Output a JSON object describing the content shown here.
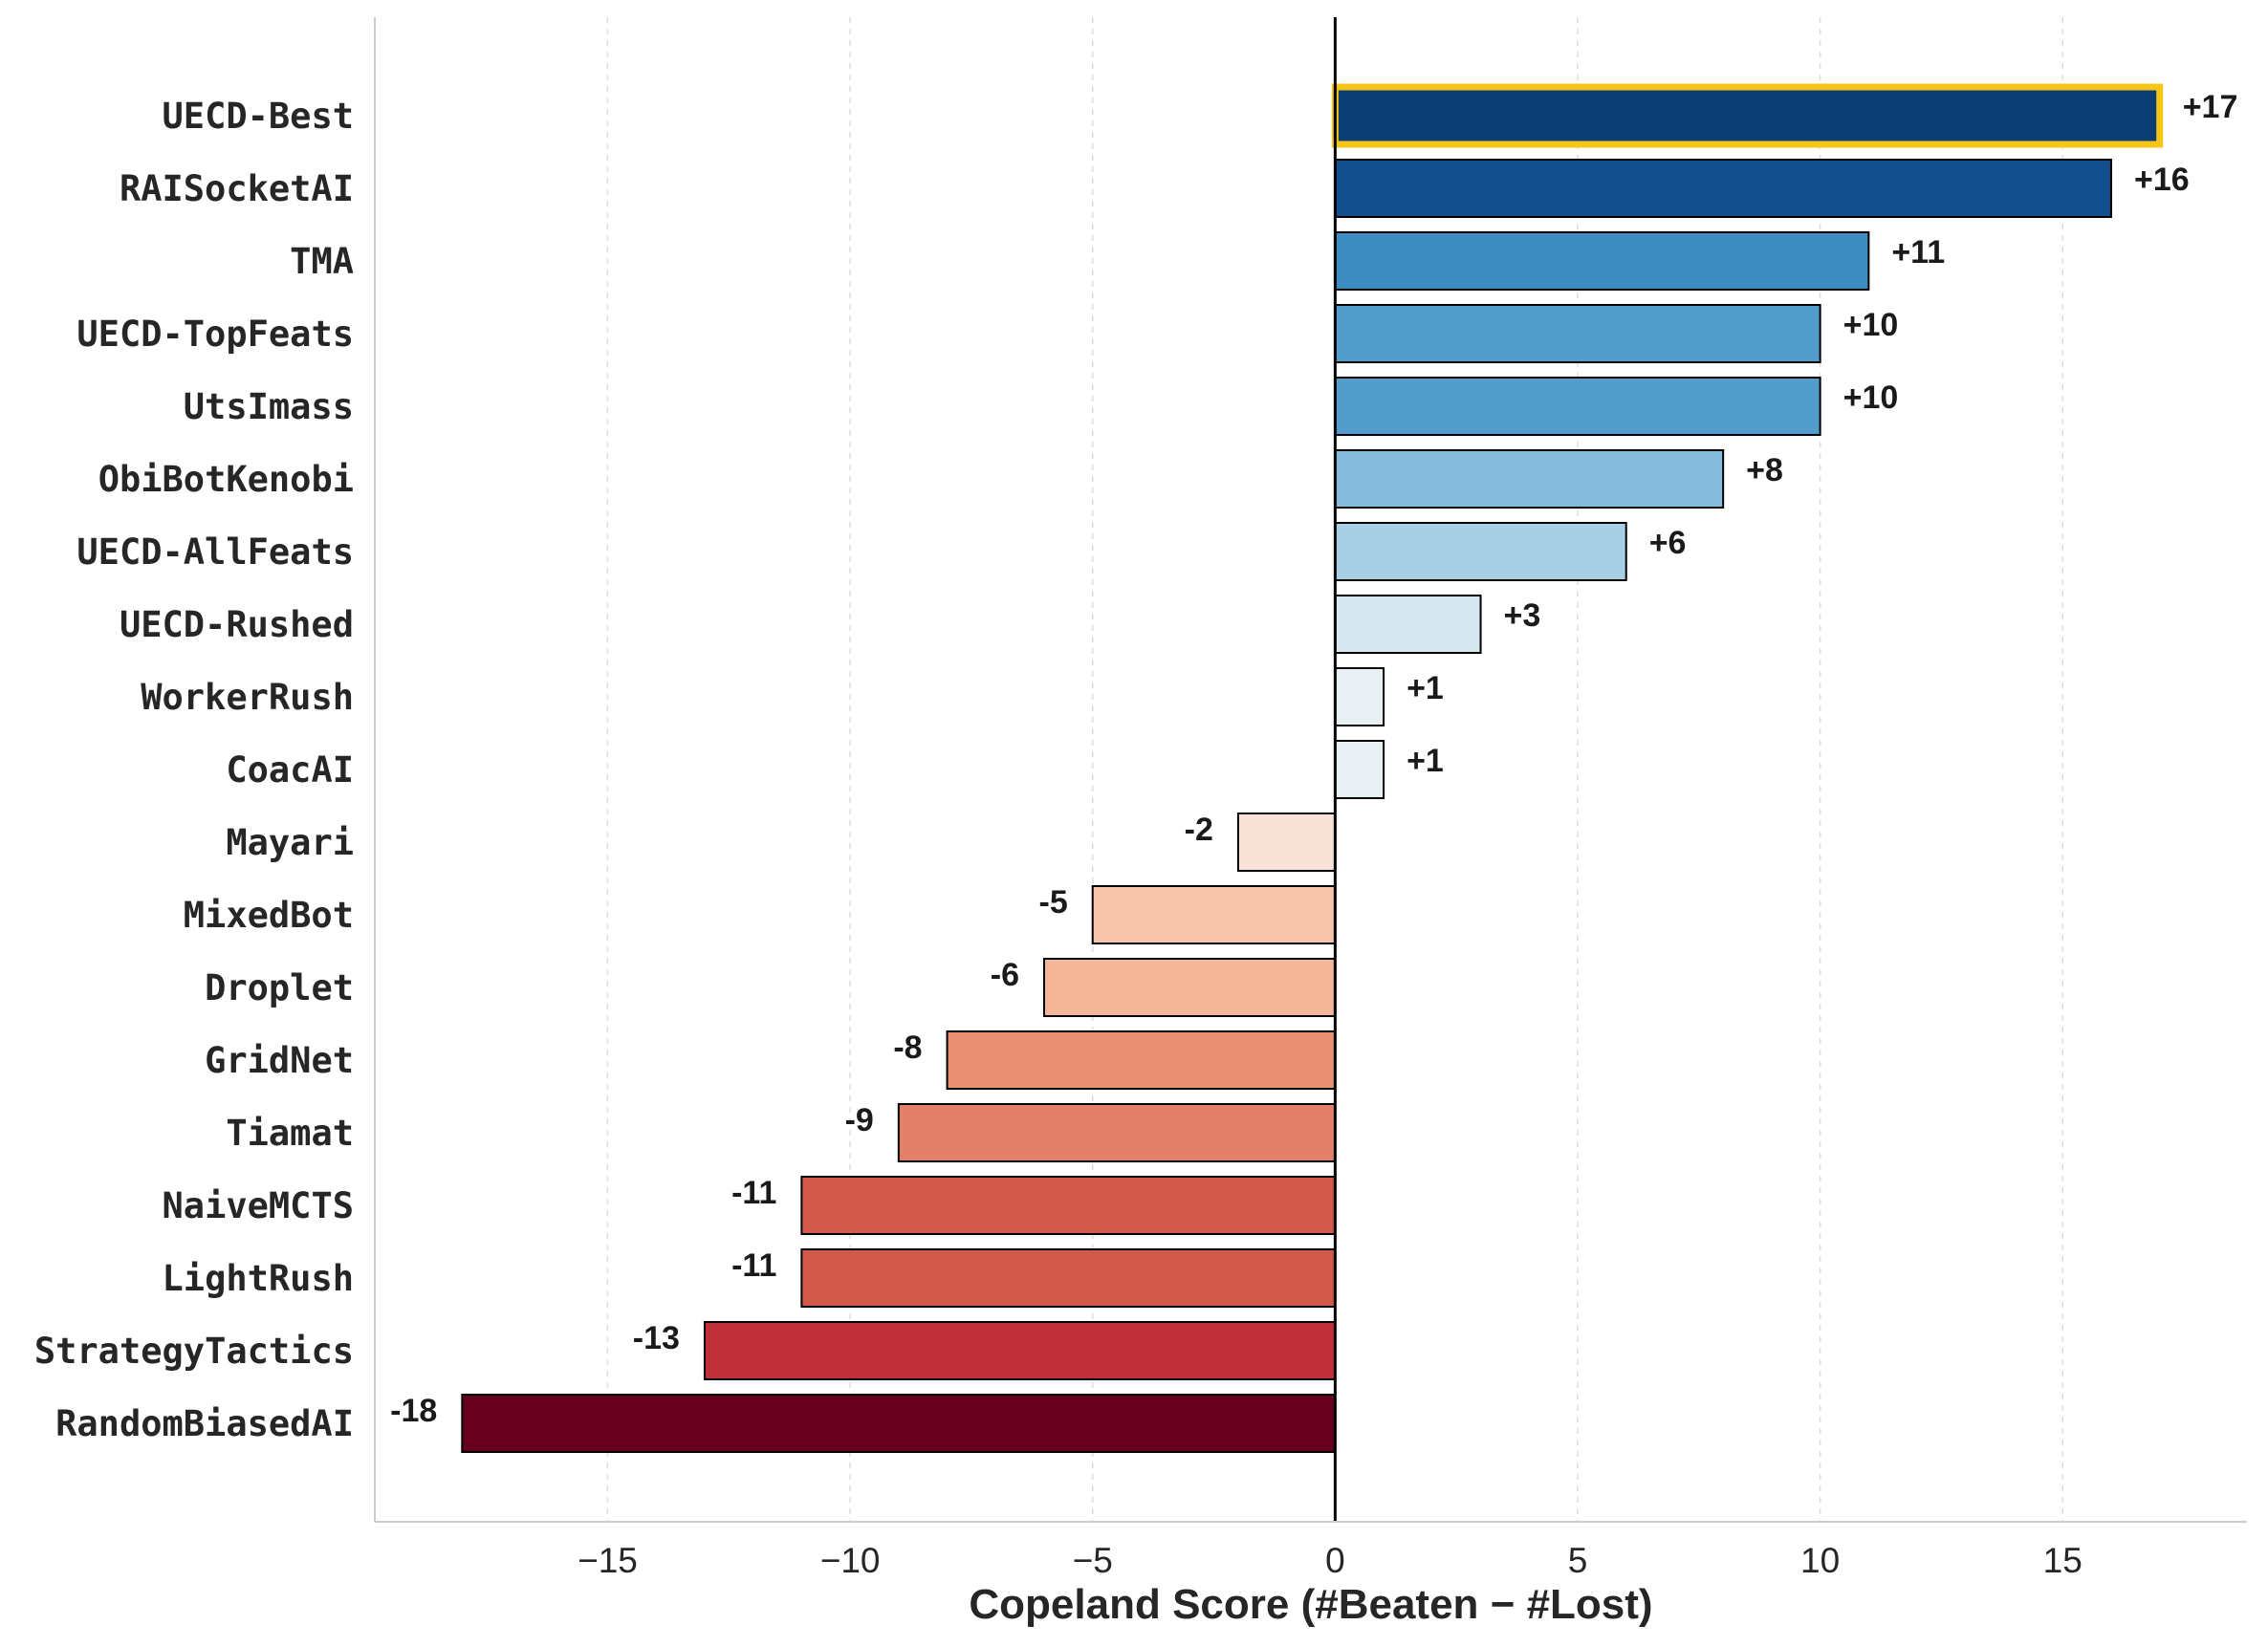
{
  "chart_data": {
    "type": "bar",
    "orientation": "horizontal",
    "xlabel": "Copeland Score (#Beaten − #Lost)",
    "ylabel": "",
    "title": "",
    "xlim": [
      -19.8,
      18.8
    ],
    "xticks": [
      -15,
      -10,
      -5,
      0,
      5,
      10,
      15
    ],
    "xtick_labels": [
      "−15",
      "−10",
      "−5",
      "0",
      "5",
      "10",
      "15"
    ],
    "grid": "vertical dashed",
    "highlighted_category": "UECD-Best",
    "highlight_color": "#f5c518",
    "categories": [
      "UECD-Best",
      "RAISocketAI",
      "TMA",
      "UECD-TopFeats",
      "UtsImass",
      "ObiBotKenobi",
      "UECD-AllFeats",
      "UECD-Rushed",
      "WorkerRush",
      "CoacAI",
      "Mayari",
      "MixedBot",
      "Droplet",
      "GridNet",
      "Tiamat",
      "NaiveMCTS",
      "LightRush",
      "StrategyTactics",
      "RandomBiasedAI"
    ],
    "values": [
      17,
      16,
      11,
      10,
      10,
      8,
      6,
      3,
      1,
      1,
      -2,
      -5,
      -6,
      -8,
      -9,
      -11,
      -11,
      -13,
      -18
    ],
    "value_labels": [
      "+17",
      "+16",
      "+11",
      "+10",
      "+10",
      "+8",
      "+6",
      "+3",
      "+1",
      "+1",
      "-2",
      "-5",
      "-6",
      "-8",
      "-9",
      "-11",
      "-11",
      "-13",
      "-18"
    ],
    "colors": [
      "#0d3d75",
      "#134f8e",
      "#3d8dc3",
      "#529dcb",
      "#529dcb",
      "#85bbdb",
      "#a8d0e4",
      "#d8e8f1",
      "#e9f0f4",
      "#e9f0f4",
      "#f9e3d9",
      "#f7c4ab",
      "#f4b699",
      "#eb9173",
      "#e3806a",
      "#d25a4a",
      "#d25a4a",
      "#c0313a",
      "#67001f"
    ]
  }
}
